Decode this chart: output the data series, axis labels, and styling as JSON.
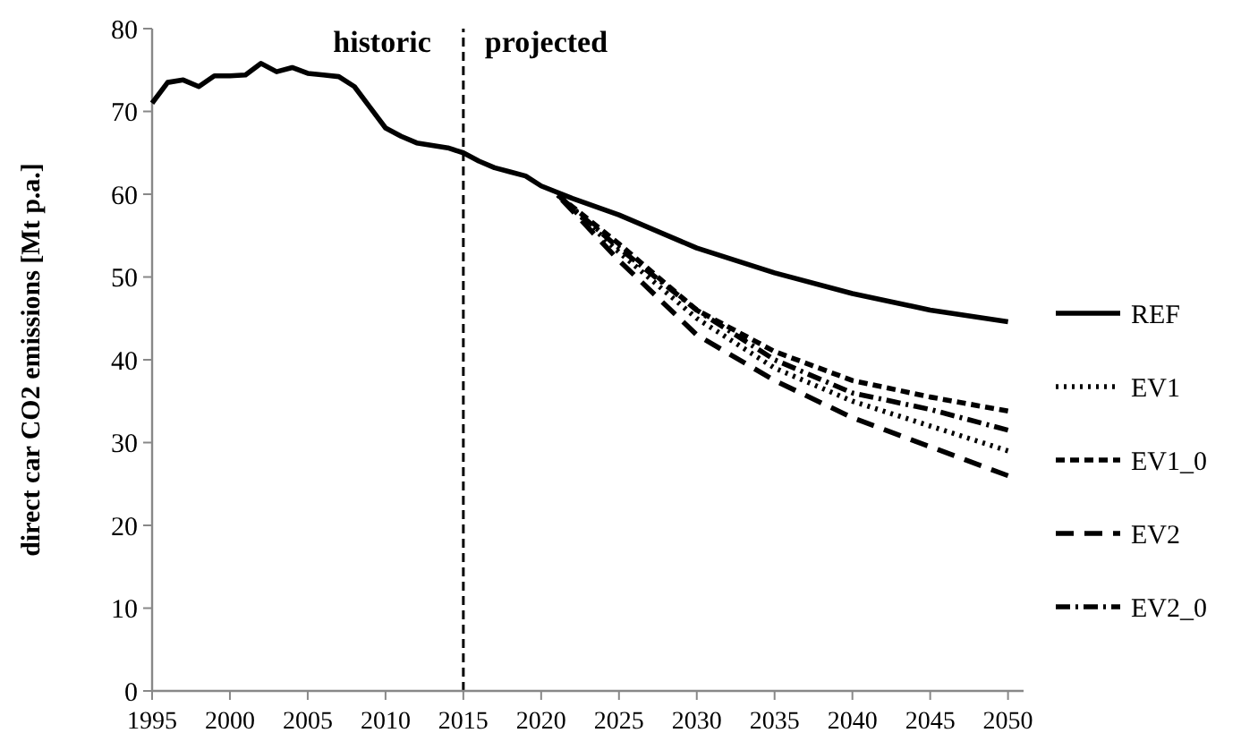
{
  "chart_data": {
    "type": "line",
    "ylabel": "direct car CO2 emissions [Mt p.a.]",
    "xlim": [
      1995,
      2051
    ],
    "ylim": [
      0,
      80
    ],
    "xticks": [
      1995,
      2000,
      2005,
      2010,
      2015,
      2020,
      2025,
      2030,
      2035,
      2040,
      2045,
      2050
    ],
    "yticks": [
      0,
      10,
      20,
      30,
      40,
      50,
      60,
      70,
      80
    ],
    "grid": false,
    "legend": "right",
    "ref_lines": [
      {
        "axis": "x",
        "value": 2015,
        "line_style": "dashed",
        "color": "#000000"
      }
    ],
    "annotations": [
      "historic",
      "projected"
    ],
    "series": [
      {
        "name": "REF",
        "color": "#000000",
        "line_style": "solid",
        "x": [
          1995,
          1996,
          1997,
          1998,
          1999,
          2000,
          2001,
          2002,
          2003,
          2004,
          2005,
          2006,
          2007,
          2008,
          2009,
          2010,
          2011,
          2012,
          2013,
          2014,
          2015,
          2016,
          2017,
          2018,
          2019,
          2020,
          2022,
          2025,
          2030,
          2035,
          2040,
          2045,
          2050
        ],
        "values": [
          71,
          73.5,
          73.8,
          73,
          74.3,
          74.3,
          74.4,
          75.8,
          74.8,
          75.3,
          74.6,
          74.4,
          74.2,
          73,
          70.5,
          68,
          67,
          66.2,
          65.9,
          65.6,
          65,
          64,
          63.2,
          62.7,
          62.2,
          61,
          59.5,
          57.5,
          53.5,
          50.5,
          48,
          46,
          44.6
        ]
      },
      {
        "name": "EV1",
        "color": "#000000",
        "line_style": "dotted",
        "x": [
          2021,
          2025,
          2030,
          2035,
          2040,
          2045,
          2050
        ],
        "values": [
          60,
          53,
          45,
          39,
          35,
          32,
          29
        ]
      },
      {
        "name": "EV1_0",
        "color": "#000000",
        "line_style": "dashed",
        "x": [
          2021,
          2025,
          2030,
          2035,
          2040,
          2045,
          2050
        ],
        "values": [
          60,
          54,
          46,
          41,
          37.5,
          35.5,
          33.8
        ]
      },
      {
        "name": "EV2",
        "color": "#000000",
        "line_style": "longdash",
        "x": [
          2021,
          2025,
          2030,
          2035,
          2040,
          2045,
          2050
        ],
        "values": [
          60,
          52,
          43,
          37.5,
          33,
          29.5,
          26
        ]
      },
      {
        "name": "EV2_0",
        "color": "#000000",
        "line_style": "dashdot",
        "x": [
          2021,
          2025,
          2030,
          2035,
          2040,
          2045,
          2050
        ],
        "values": [
          60,
          53.5,
          46,
          40,
          36,
          34,
          31.5
        ]
      }
    ]
  }
}
